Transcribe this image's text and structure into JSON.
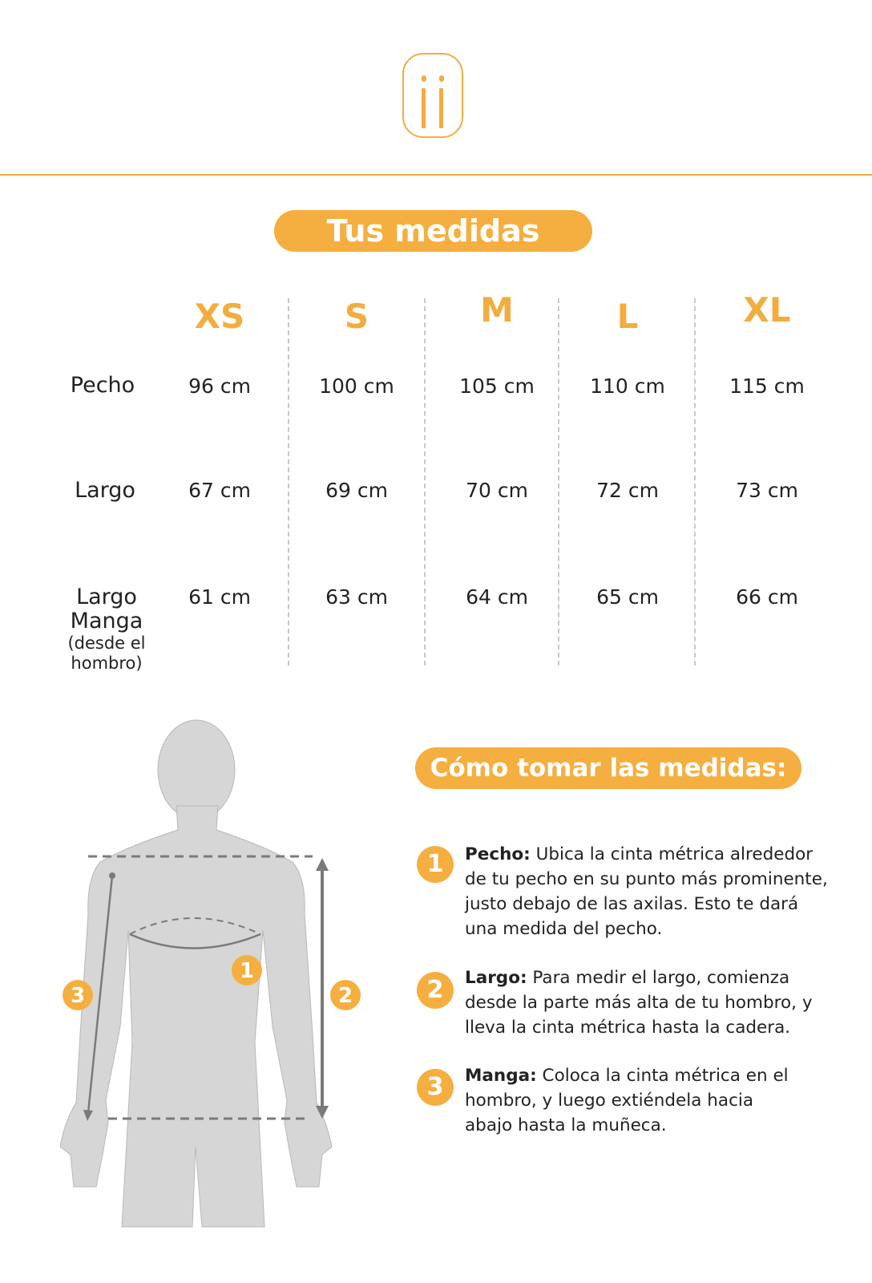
{
  "logo": {
    "text": "ii",
    "color": "#f2ad3e"
  },
  "title": "Tus medidas",
  "sizes": [
    "XS",
    "S",
    "M",
    "L",
    "XL"
  ],
  "rows": [
    {
      "label": "Pecho",
      "sublabel": "",
      "values": [
        "96 cm",
        "100 cm",
        "105 cm",
        "110 cm",
        "115 cm"
      ]
    },
    {
      "label": "Largo",
      "sublabel": "",
      "values": [
        "67 cm",
        "69 cm",
        "70 cm",
        "72 cm",
        "73 cm"
      ]
    },
    {
      "label": "Largo Manga",
      "sublabel": "(desde el hombro)",
      "values": [
        "61 cm",
        "63 cm",
        "64 cm",
        "65 cm",
        "66 cm"
      ]
    }
  ],
  "how_title": "Cómo tomar las medidas:",
  "steps": [
    {
      "num": "1",
      "term": "Pecho:",
      "text": " Ubica la cinta métrica alrededor de tu pecho en su punto más prominente, justo debajo de las axilas. Esto te dará una medida del pecho."
    },
    {
      "num": "2",
      "term": "Largo:",
      "text": " Para medir el largo, comienza desde la parte más alta de tu hombro, y lleva la cinta métrica hasta la cadera."
    },
    {
      "num": "3",
      "term": "Manga:",
      "text": " Coloca la cinta métrica en el hombro, y luego extiéndela hacia abajo hasta la muñeca."
    }
  ],
  "figure_markers": [
    "1",
    "2",
    "3"
  ],
  "colors": {
    "accent": "#f5af40",
    "figure": "#d6d6d6",
    "lines": "#7a7a7a"
  }
}
